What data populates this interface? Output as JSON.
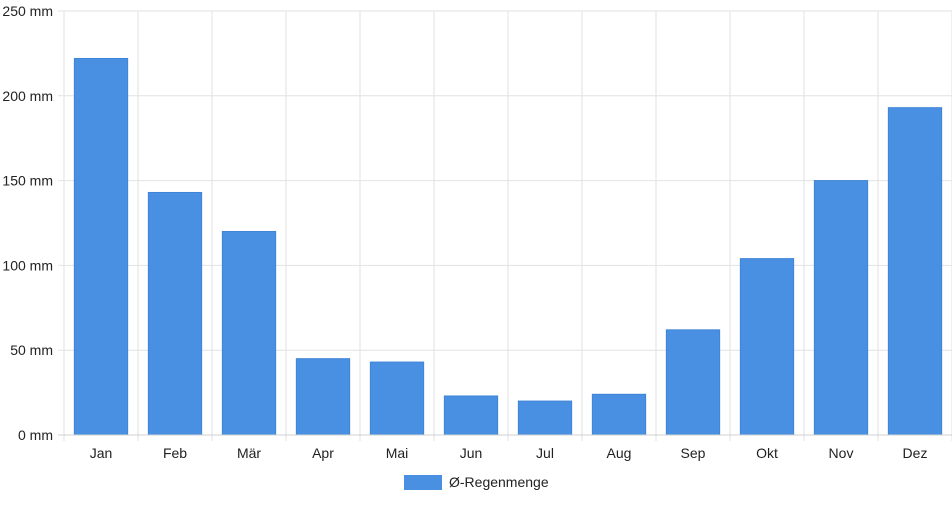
{
  "chart_data": {
    "type": "bar",
    "categories": [
      "Jan",
      "Feb",
      "Mär",
      "Apr",
      "Mai",
      "Jun",
      "Jul",
      "Aug",
      "Sep",
      "Okt",
      "Nov",
      "Dez"
    ],
    "series": [
      {
        "name": "Ø-Regenmenge",
        "values": [
          222,
          143,
          120,
          45,
          43,
          23,
          20,
          24,
          62,
          104,
          150,
          193
        ],
        "color": "#4a90e2"
      }
    ],
    "ylim": [
      0,
      250
    ],
    "yticks": [
      0,
      50,
      100,
      150,
      200,
      250
    ],
    "ytick_labels": [
      "0 mm",
      "50 mm",
      "100 mm",
      "150 mm",
      "200 mm",
      "250 mm"
    ],
    "grid": true,
    "legend_position": "bottom-center",
    "title": "",
    "xlabel": "",
    "ylabel": ""
  }
}
